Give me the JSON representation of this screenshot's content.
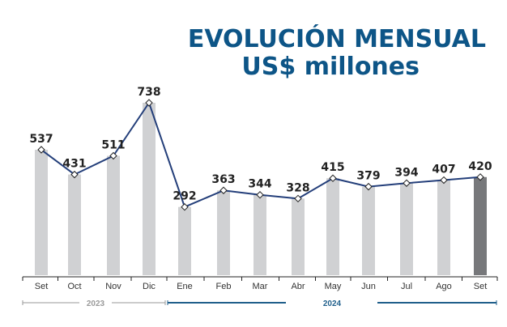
{
  "chart_data": {
    "type": "bar+line",
    "title": "EVOLUCIÓN MENSUAL",
    "subtitle": "US$ millones",
    "categories": [
      "Set",
      "Oct",
      "Nov",
      "Dic",
      "Ene",
      "Feb",
      "Mar",
      "Abr",
      "May",
      "Jun",
      "Jul",
      "Ago",
      "Set"
    ],
    "values": [
      537,
      431,
      511,
      738,
      292,
      363,
      344,
      328,
      415,
      379,
      394,
      407,
      420
    ],
    "year_groups": [
      {
        "label": "2023",
        "from": 0,
        "to": 3,
        "color": "#9a9a9a"
      },
      {
        "label": "2024",
        "from": 4,
        "to": 12,
        "color": "#1f5f8b"
      }
    ],
    "ylim": [
      0,
      738
    ],
    "grid": false,
    "colors": {
      "bar": "#d0d1d3",
      "bar_highlight": "#77787b",
      "line": "#243f7a",
      "title": "#0d5587"
    }
  }
}
